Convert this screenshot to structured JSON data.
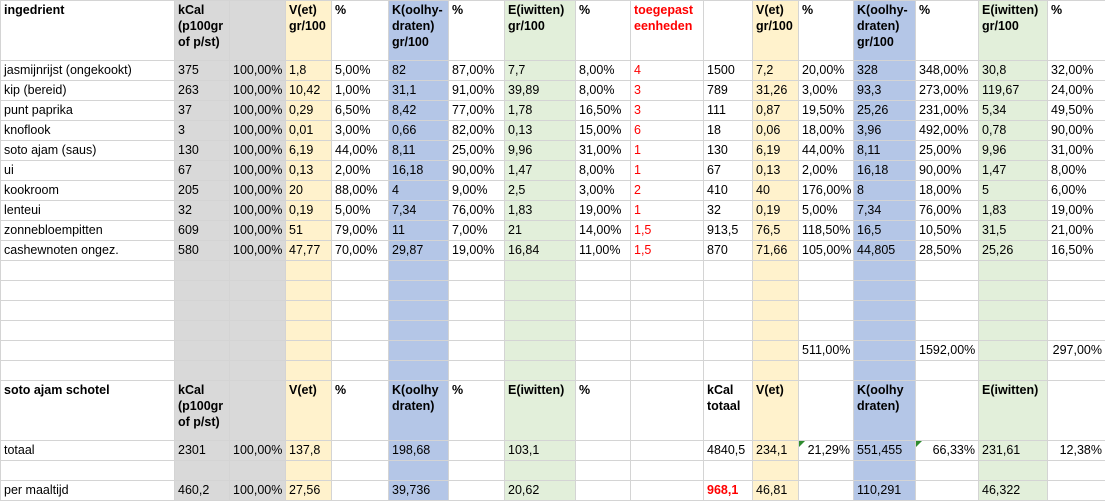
{
  "rows": [
    [
      "ingedrient",
      "kCal (p100gr of p/st)",
      null,
      "V(et) gr/100",
      "%",
      "K(oolhy-draten) gr/100",
      "%",
      "E(iwitten) gr/100",
      "%",
      "toegepast eenheden",
      null,
      "V(et) gr/100",
      "%",
      "K(oolhy-draten) gr/100",
      "%",
      "E(iwitten) gr/100",
      "%"
    ],
    [
      "jasmijnrijst (ongekookt)",
      "375",
      "100,00%",
      "1,8",
      "5,00%",
      "82",
      "87,00%",
      "7,7",
      "8,00%",
      "4",
      "1500",
      "7,2",
      "20,00%",
      "328",
      "348,00%",
      "30,8",
      "32,00%"
    ],
    [
      "kip (bereid)",
      "263",
      "100,00%",
      "10,42",
      "1,00%",
      "31,1",
      "91,00%",
      "39,89",
      "8,00%",
      "3",
      "789",
      "31,26",
      "3,00%",
      "93,3",
      "273,00%",
      "119,67",
      "24,00%"
    ],
    [
      "punt paprika",
      "37",
      "100,00%",
      "0,29",
      "6,50%",
      "8,42",
      "77,00%",
      "1,78",
      "16,50%",
      "3",
      "111",
      "0,87",
      "19,50%",
      "25,26",
      "231,00%",
      "5,34",
      "49,50%"
    ],
    [
      "knoflook",
      "3",
      "100,00%",
      "0,01",
      "3,00%",
      "0,66",
      "82,00%",
      "0,13",
      "15,00%",
      "6",
      "18",
      "0,06",
      "18,00%",
      "3,96",
      "492,00%",
      "0,78",
      "90,00%"
    ],
    [
      "soto ajam (saus)",
      "130",
      "100,00%",
      "6,19",
      "44,00%",
      "8,11",
      "25,00%",
      "9,96",
      "31,00%",
      "1",
      "130",
      "6,19",
      "44,00%",
      "8,11",
      "25,00%",
      "9,96",
      "31,00%"
    ],
    [
      "ui",
      "67",
      "100,00%",
      "0,13",
      "2,00%",
      "16,18",
      "90,00%",
      "1,47",
      "8,00%",
      "1",
      "67",
      "0,13",
      "2,00%",
      "16,18",
      "90,00%",
      "1,47",
      "8,00%"
    ],
    [
      "kookroom",
      "205",
      "100,00%",
      "20",
      "88,00%",
      "4",
      "9,00%",
      "2,5",
      "3,00%",
      "2",
      "410",
      "40",
      "176,00%",
      "8",
      "18,00%",
      "5",
      "6,00%"
    ],
    [
      "lenteui",
      "32",
      "100,00%",
      "0,19",
      "5,00%",
      "7,34",
      "76,00%",
      "1,83",
      "19,00%",
      "1",
      "32",
      "0,19",
      "5,00%",
      "7,34",
      "76,00%",
      "1,83",
      "19,00%"
    ],
    [
      "zonnebloempitten",
      "609",
      "100,00%",
      "51",
      "79,00%",
      "11",
      "7,00%",
      "21",
      "14,00%",
      "1,5",
      "913,5",
      "76,5",
      "118,50%",
      "16,5",
      "10,50%",
      "31,5",
      "21,00%"
    ],
    [
      "cashewnoten ongez.",
      "580",
      "100,00%",
      "47,77",
      "70,00%",
      "29,87",
      "19,00%",
      "16,84",
      "11,00%",
      "1,5",
      "870",
      "71,66",
      "105,00%",
      "44,805",
      "28,50%",
      "25,26",
      "16,50%"
    ],
    [
      null,
      null,
      null,
      null,
      null,
      null,
      null,
      null,
      null,
      null,
      null,
      null,
      null,
      null,
      null,
      null,
      null
    ],
    [
      null,
      null,
      null,
      null,
      null,
      null,
      null,
      null,
      null,
      null,
      null,
      null,
      null,
      null,
      null,
      null,
      null
    ],
    [
      null,
      null,
      null,
      null,
      null,
      null,
      null,
      null,
      null,
      null,
      null,
      null,
      null,
      null,
      null,
      null,
      null
    ],
    [
      null,
      null,
      null,
      null,
      null,
      null,
      null,
      null,
      null,
      null,
      null,
      null,
      null,
      null,
      null,
      null,
      null
    ],
    [
      null,
      null,
      null,
      null,
      null,
      null,
      null,
      null,
      null,
      null,
      null,
      null,
      "511,00%",
      null,
      "1592,00%",
      null,
      "297,00%"
    ],
    [
      null,
      null,
      null,
      null,
      null,
      null,
      null,
      null,
      null,
      null,
      null,
      null,
      null,
      null,
      null,
      null,
      null
    ],
    [
      "soto ajam schotel",
      "kCal (p100gr of p/st)",
      null,
      "V(et)",
      "%",
      "K(oolhy draten)",
      "%",
      "E(iwitten)",
      "%",
      null,
      "kCal totaal",
      "V(et)",
      null,
      "K(oolhy draten)",
      null,
      "E(iwitten)",
      null
    ],
    [
      "totaal",
      "2301",
      "100,00%",
      "137,8",
      null,
      "198,68",
      null,
      "103,1",
      null,
      null,
      "4840,5",
      "234,1",
      "21,29%",
      "551,455",
      "66,33%",
      "231,61",
      "12,38%"
    ],
    [
      null,
      null,
      null,
      null,
      null,
      null,
      null,
      null,
      null,
      null,
      null,
      null,
      null,
      null,
      null,
      null,
      null
    ],
    [
      "per maaltijd",
      "460,2",
      "100,00%",
      "27,56",
      null,
      "39,736",
      null,
      "20,62",
      null,
      null,
      "968,1",
      "46,81",
      null,
      "110,291",
      null,
      "46,322",
      null
    ]
  ]
}
